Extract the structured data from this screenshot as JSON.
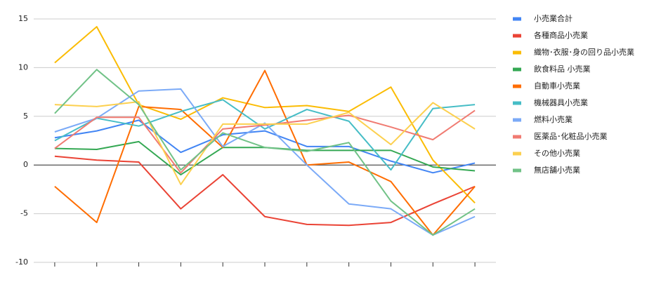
{
  "chart_data": {
    "type": "line",
    "categories": [
      null,
      null,
      null,
      null,
      null,
      null,
      null,
      null,
      null,
      null,
      null
    ],
    "ylim": [
      -10,
      15
    ],
    "yticks": [
      -10,
      -5,
      0,
      5,
      10,
      15
    ],
    "grid": true,
    "legend": "right",
    "series": [
      {
        "name": "小売業合計",
        "color": "#4285f4",
        "values": [
          2.8,
          3.5,
          4.6,
          1.3,
          3.1,
          3.5,
          1.9,
          1.9,
          0.4,
          -0.8,
          0.2
        ]
      },
      {
        "name": "各種商品小売業",
        "color": "#ea4335",
        "values": [
          0.9,
          0.5,
          0.3,
          -4.5,
          -1.0,
          -5.3,
          -6.1,
          -6.2,
          -5.9,
          -4.0,
          -2.2
        ]
      },
      {
        "name": "織物･衣服･身の回り品小売業",
        "color": "#fbbc04",
        "values": [
          10.5,
          14.2,
          6.2,
          4.7,
          6.9,
          5.9,
          6.1,
          5.5,
          8.0,
          0.5,
          -3.9
        ]
      },
      {
        "name": "飲食料品 小売業",
        "color": "#34a853",
        "values": [
          1.7,
          1.6,
          2.4,
          -1.0,
          1.8,
          1.8,
          1.5,
          1.5,
          1.5,
          -0.2,
          -0.6
        ]
      },
      {
        "name": "自動車小売業",
        "color": "#ff6d01",
        "values": [
          -2.2,
          -5.9,
          6.0,
          5.7,
          1.8,
          9.7,
          0,
          0.3,
          -1.7,
          -7.2,
          -2.2
        ]
      },
      {
        "name": "機械器具小売業",
        "color": "#46bdc6",
        "values": [
          2.5,
          4.8,
          4.0,
          5.5,
          6.7,
          3.7,
          5.7,
          4.5,
          -0.5,
          5.8,
          6.2
        ]
      },
      {
        "name": "燃料小売業",
        "color": "#7baaf7",
        "values": [
          3.4,
          4.8,
          7.6,
          7.8,
          1.9,
          4.3,
          0,
          -4.0,
          -4.5,
          -7.2,
          -5.3
        ]
      },
      {
        "name": "医薬品･化粧品小売業",
        "color": "#f07b72",
        "values": [
          1.7,
          4.9,
          4.9,
          -0.8,
          3.7,
          4.1,
          4.6,
          5.1,
          3.9,
          2.6,
          5.6
        ]
      },
      {
        "name": "その他小売業",
        "color": "#fcd04f",
        "values": [
          6.2,
          6.0,
          6.5,
          -2.0,
          4.2,
          4.2,
          4.2,
          5.4,
          2.1,
          6.4,
          3.7
        ]
      },
      {
        "name": "無店舗小売業",
        "color": "#71c287",
        "values": [
          5.3,
          9.8,
          6.2,
          -0.5,
          3.3,
          1.8,
          1.4,
          2.3,
          -3.7,
          -7.2,
          -4.5
        ]
      }
    ]
  }
}
